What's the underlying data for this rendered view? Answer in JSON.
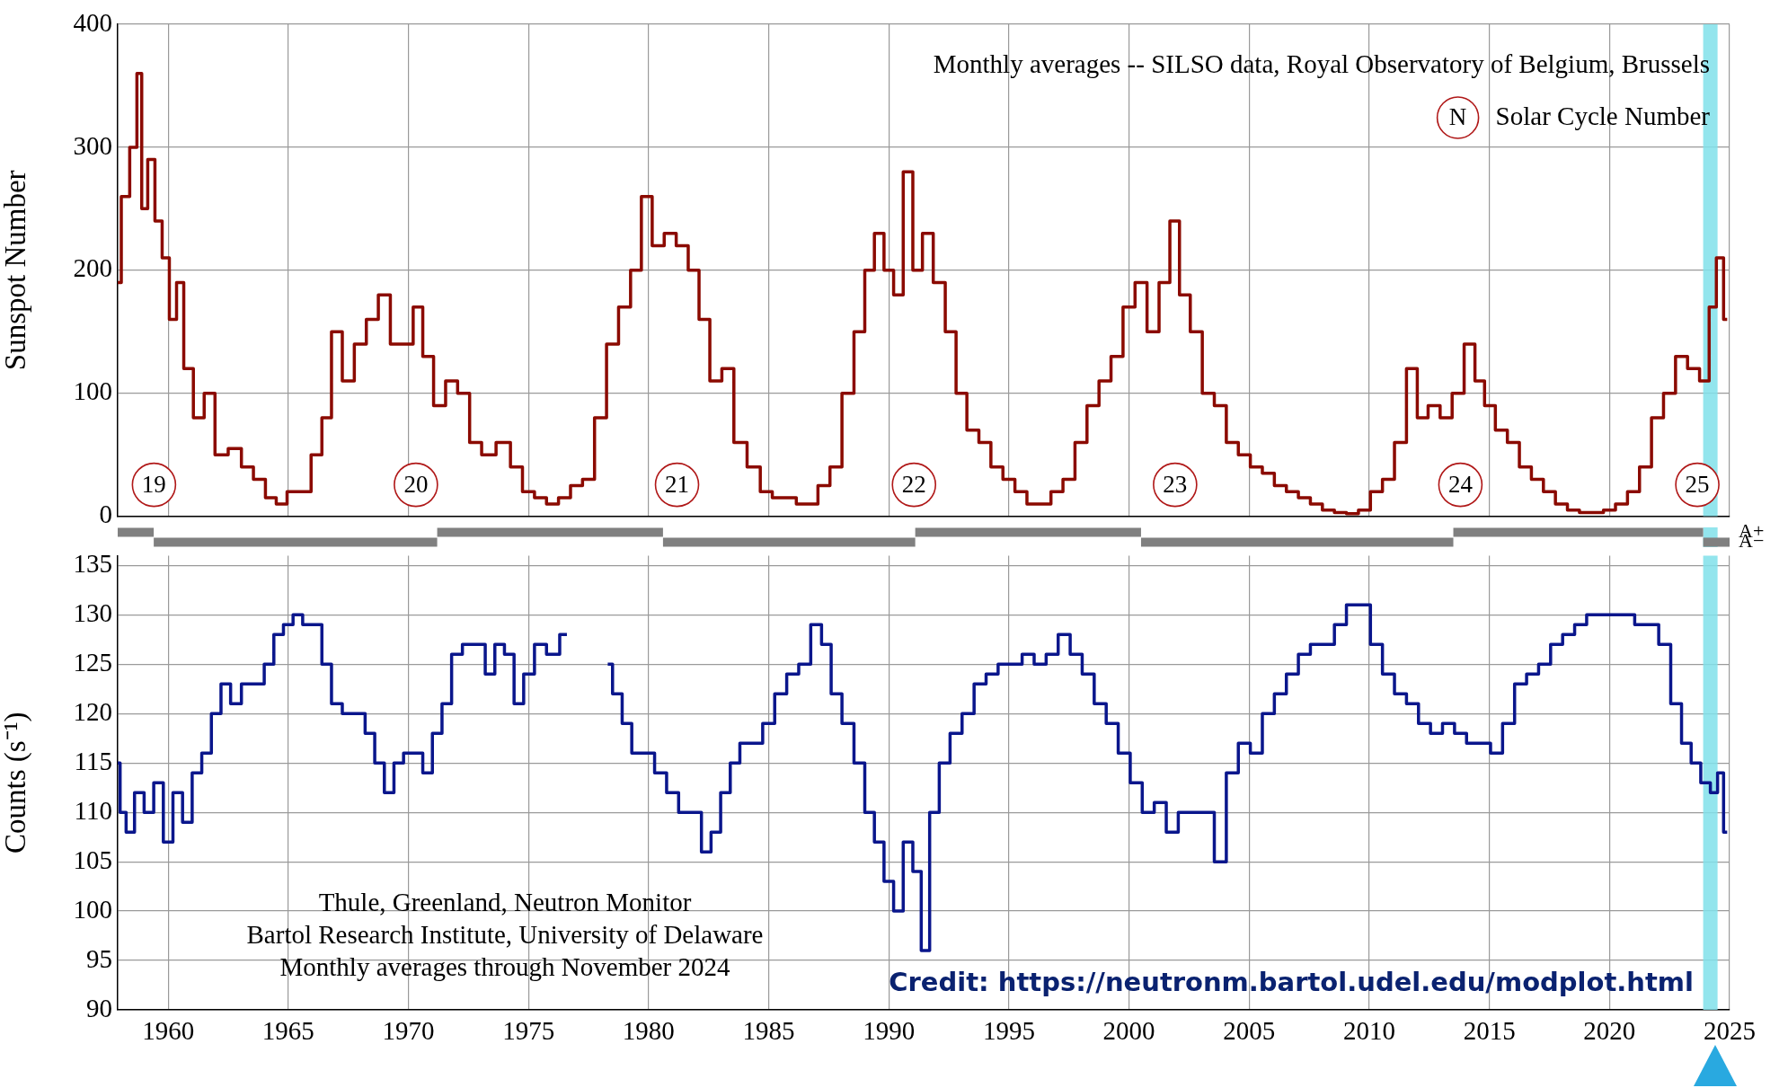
{
  "chart_data": [
    {
      "type": "step",
      "ylabel": "Sunspot Number",
      "xlim": [
        1957.9,
        2025
      ],
      "xticks": [
        1960,
        1965,
        1970,
        1975,
        1980,
        1985,
        1990,
        1995,
        2000,
        2005,
        2010,
        2015,
        2020,
        2025
      ],
      "ylim": [
        0,
        400
      ],
      "yticks": [
        0,
        100,
        200,
        300,
        400
      ],
      "grid": true,
      "tick_labels": "y",
      "annotations": [
        "Monthly averages -- SILSO data, Royal Observatory of Belgium, Brussels",
        "N",
        "Solar Cycle Number",
        "19",
        "20",
        "21",
        "22",
        "23",
        "24",
        "25"
      ],
      "bands": [
        {
          "axis": "x",
          "from": 2023.9,
          "to": 2024.5,
          "color": "#80e0ea"
        }
      ],
      "series": [
        {
          "color": "#8b0a00",
          "x": [
            1957.9,
            1958.2,
            1958.6,
            1958.8,
            1959.0,
            1959.3,
            1959.6,
            1959.9,
            1960.2,
            1960.5,
            1960.8,
            1961.3,
            1961.7,
            1962.2,
            1962.8,
            1963.3,
            1963.8,
            1964.3,
            1964.7,
            1965.2,
            1965.7,
            1966.2,
            1966.6,
            1967.0,
            1967.5,
            1968.0,
            1968.5,
            1969.0,
            1969.5,
            1970.0,
            1970.4,
            1970.8,
            1971.3,
            1971.8,
            1972.3,
            1972.8,
            1973.3,
            1974.0,
            1974.5,
            1975.0,
            1975.5,
            1976.0,
            1976.5,
            1977.0,
            1977.5,
            1978.0,
            1978.5,
            1979.0,
            1979.5,
            1979.9,
            1980.4,
            1980.9,
            1981.4,
            1981.9,
            1982.3,
            1982.8,
            1983.3,
            1983.8,
            1984.4,
            1984.9,
            1985.4,
            1985.9,
            1986.4,
            1986.8,
            1987.3,
            1987.8,
            1988.3,
            1988.8,
            1989.2,
            1989.6,
            1990.0,
            1990.4,
            1990.8,
            1991.2,
            1991.6,
            1992.1,
            1992.6,
            1993.0,
            1993.5,
            1994.0,
            1994.5,
            1995.0,
            1995.5,
            1996.0,
            1996.5,
            1997.0,
            1997.5,
            1998.0,
            1998.5,
            1999.0,
            1999.5,
            2000.0,
            2000.5,
            2001.0,
            2001.5,
            2001.9,
            2002.3,
            2002.8,
            2003.3,
            2003.8,
            2004.3,
            2004.8,
            2005.3,
            2005.8,
            2006.3,
            2006.8,
            2007.3,
            2007.8,
            2008.3,
            2008.8,
            2009.3,
            2009.8,
            2010.3,
            2010.8,
            2011.3,
            2011.8,
            2012.2,
            2012.7,
            2013.2,
            2013.7,
            2014.2,
            2014.6,
            2015.0,
            2015.5,
            2016.0,
            2016.5,
            2017.0,
            2017.5,
            2018.0,
            2018.5,
            2019.0,
            2019.5,
            2020.0,
            2020.5,
            2021.0,
            2021.5,
            2022.0,
            2022.5,
            2023.0,
            2023.5,
            2024.0,
            2024.3,
            2024.6,
            2024.9
          ],
          "values": [
            190,
            260,
            300,
            360,
            250,
            290,
            240,
            210,
            160,
            190,
            120,
            80,
            100,
            50,
            55,
            40,
            30,
            15,
            10,
            20,
            20,
            50,
            80,
            150,
            110,
            140,
            160,
            180,
            140,
            140,
            170,
            130,
            90,
            110,
            100,
            60,
            50,
            60,
            40,
            20,
            15,
            10,
            15,
            25,
            30,
            80,
            140,
            170,
            200,
            260,
            220,
            230,
            220,
            200,
            160,
            110,
            120,
            60,
            40,
            20,
            15,
            15,
            10,
            10,
            25,
            40,
            100,
            150,
            200,
            230,
            200,
            180,
            280,
            200,
            230,
            190,
            150,
            100,
            70,
            60,
            40,
            30,
            20,
            10,
            10,
            20,
            30,
            60,
            90,
            110,
            130,
            170,
            190,
            150,
            190,
            240,
            180,
            150,
            100,
            90,
            60,
            50,
            40,
            35,
            25,
            20,
            15,
            10,
            5,
            3,
            2,
            5,
            20,
            30,
            60,
            120,
            80,
            90,
            80,
            100,
            140,
            110,
            90,
            70,
            60,
            40,
            30,
            20,
            10,
            5,
            3,
            3,
            5,
            10,
            20,
            40,
            80,
            100,
            130,
            120,
            110,
            170,
            210,
            160
          ]
        }
      ]
    },
    {
      "type": "bar",
      "orientation": "horizontal",
      "categories": [
        "A+",
        "A−"
      ],
      "xlim": [
        1957.9,
        2025
      ],
      "tick_labels": "y",
      "bands": [
        {
          "axis": "x",
          "from": 2023.9,
          "to": 2024.5,
          "color": "#80e0ea"
        }
      ],
      "series": [
        {
          "color": "#808080",
          "base": [
            1957.9,
            1959.4
          ],
          "values": [
            1.5,
            11.8
          ]
        },
        {
          "color": "#808080",
          "base": [
            1971.2,
            1980.6
          ],
          "values": [
            9.4,
            10.5
          ]
        },
        {
          "color": "#808080",
          "base": [
            1991.1,
            2000.5
          ],
          "values": [
            9.4,
            13.0
          ]
        },
        {
          "color": "#808080",
          "base": [
            2013.5,
            2023.9
          ],
          "values": [
            10.4,
            1.1
          ]
        }
      ]
    },
    {
      "type": "step",
      "ylabel": "Counts (s⁻¹)",
      "xlim": [
        1957.9,
        2025
      ],
      "xticks": [
        1960,
        1965,
        1970,
        1975,
        1980,
        1985,
        1990,
        1995,
        2000,
        2005,
        2010,
        2015,
        2020,
        2025
      ],
      "ylim": [
        90,
        136
      ],
      "yticks": [
        90,
        95,
        100,
        105,
        110,
        115,
        120,
        125,
        130,
        135
      ],
      "grid": true,
      "annotations": [
        "Thule, Greenland, Neutron Monitor",
        "Bartol Research Institute, University of Delaware",
        "Monthly averages through November 2024",
        "Credit: https://neutronm.bartol.udel.edu/modplot.html"
      ],
      "bands": [
        {
          "axis": "x",
          "from": 2023.9,
          "to": 2024.5,
          "color": "#80e0ea"
        }
      ],
      "series": [
        {
          "color": "#0a168c",
          "x": [
            1957.9,
            1958.1,
            1958.4,
            1958.8,
            1959.2,
            1959.6,
            1960.0,
            1960.4,
            1960.8,
            1961.2,
            1961.6,
            1962.0,
            1962.4,
            1962.8,
            1963.3,
            1963.8,
            1964.2,
            1964.6,
            1965.0,
            1965.4,
            1965.8,
            1966.2,
            1966.6,
            1967.0,
            1967.5,
            1968.0,
            1968.4,
            1968.8,
            1969.2,
            1969.6,
            1970.0,
            1970.4,
            1970.8,
            1971.2,
            1971.6,
            1972.0,
            1972.5,
            1973.0,
            1973.4,
            1973.8,
            1974.2,
            1974.6,
            1975.0,
            1975.5,
            1976.0,
            1976.6,
            1977.5,
            1978.3,
            1978.7,
            1979.1,
            1979.5,
            1980.0,
            1980.5,
            1981.0,
            1981.5,
            1982.0,
            1982.4,
            1982.8,
            1983.2,
            1983.6,
            1984.0,
            1984.5,
            1985.0,
            1985.5,
            1986.0,
            1986.5,
            1987.0,
            1987.4,
            1987.8,
            1988.3,
            1988.8,
            1989.2,
            1989.6,
            1990.0,
            1990.4,
            1990.8,
            1991.2,
            1991.5,
            1991.9,
            1992.3,
            1992.8,
            1993.3,
            1993.8,
            1994.3,
            1994.8,
            1995.3,
            1995.8,
            1996.3,
            1996.8,
            1997.3,
            1997.8,
            1998.3,
            1998.8,
            1999.3,
            1999.8,
            2000.3,
            2000.8,
            2001.3,
            2001.8,
            2002.3,
            2002.8,
            2003.3,
            2003.8,
            2004.3,
            2004.8,
            2005.3,
            2005.8,
            2006.3,
            2006.8,
            2007.3,
            2007.8,
            2008.3,
            2008.8,
            2009.3,
            2009.8,
            2010.3,
            2010.8,
            2011.3,
            2011.8,
            2012.3,
            2012.8,
            2013.3,
            2013.8,
            2014.3,
            2014.8,
            2015.3,
            2015.8,
            2016.3,
            2016.8,
            2017.3,
            2017.8,
            2018.3,
            2018.8,
            2019.3,
            2019.8,
            2020.3,
            2020.8,
            2021.3,
            2021.8,
            2022.3,
            2022.8,
            2023.2,
            2023.6,
            2024.0,
            2024.4,
            2024.6,
            2024.9
          ],
          "values": [
            115,
            110,
            108,
            112,
            110,
            113,
            107,
            112,
            109,
            114,
            116,
            120,
            123,
            121,
            123,
            123,
            125,
            128,
            129,
            130,
            129,
            129,
            125,
            121,
            120,
            120,
            118,
            115,
            112,
            115,
            116,
            116,
            114,
            118,
            121,
            126,
            127,
            127,
            124,
            127,
            126,
            121,
            124,
            127,
            126,
            128,
            null,
            125,
            122,
            119,
            116,
            116,
            114,
            112,
            110,
            110,
            106,
            108,
            112,
            115,
            117,
            117,
            119,
            122,
            124,
            125,
            129,
            127,
            122,
            119,
            115,
            110,
            107,
            103,
            100,
            107,
            104,
            96,
            110,
            115,
            118,
            120,
            123,
            124,
            125,
            125,
            126,
            125,
            126,
            128,
            126,
            124,
            121,
            119,
            116,
            113,
            110,
            111,
            108,
            110,
            110,
            110,
            105,
            114,
            117,
            116,
            120,
            122,
            124,
            126,
            127,
            127,
            129,
            131,
            131,
            127,
            124,
            122,
            121,
            119,
            118,
            119,
            118,
            117,
            117,
            116,
            119,
            123,
            124,
            125,
            127,
            128,
            129,
            130,
            130,
            130,
            130,
            129,
            129,
            127,
            121,
            117,
            115,
            113,
            112,
            114,
            108
          ]
        }
      ]
    }
  ]
}
